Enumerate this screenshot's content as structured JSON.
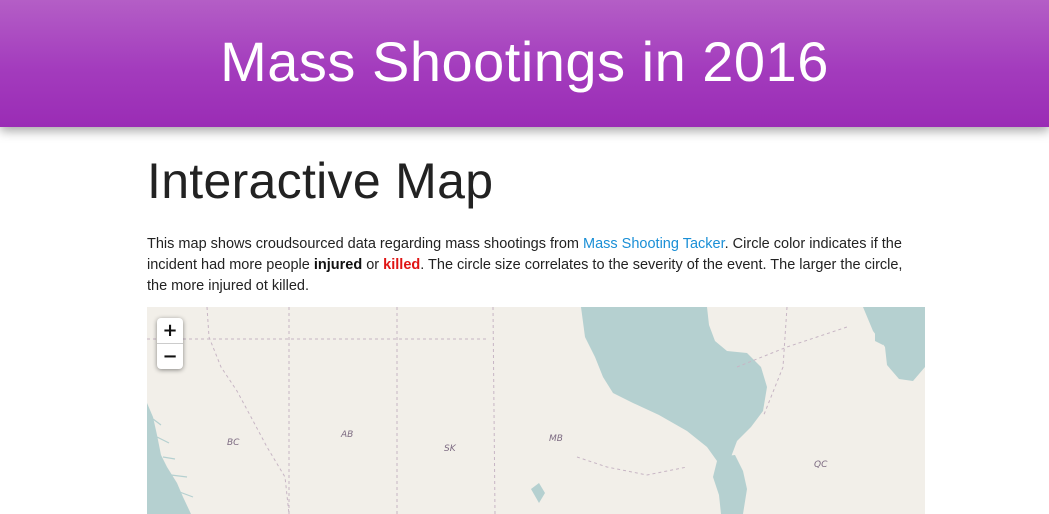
{
  "header": {
    "title": "Mass Shootings in 2016"
  },
  "section": {
    "title": "Interactive Map",
    "intro_before_link": "This map shows croudsourced data regarding mass shootings from ",
    "link_text": "Mass Shooting Tacker",
    "intro_after_link": ". Circle color indicates if the incident had more people ",
    "injured_text": "injured",
    "or_text": " or ",
    "killed_text": "killed",
    "intro_end": ". The circle size correlates to the severity of the event. The larger the circle, the more injured ot killed."
  },
  "map": {
    "zoom_in_label": "+",
    "zoom_out_label": "−",
    "regions": [
      "BC",
      "AB",
      "SK",
      "MB",
      "QC"
    ],
    "colors": {
      "land": "#f2efe9",
      "water": "#b5d0d0",
      "border": "#c7b5c4"
    }
  },
  "colors": {
    "header_gradient_top": "#b45ec6",
    "header_gradient_bottom": "#9a2cb5",
    "link": "#1a8fd6",
    "killed": "#e01414"
  }
}
